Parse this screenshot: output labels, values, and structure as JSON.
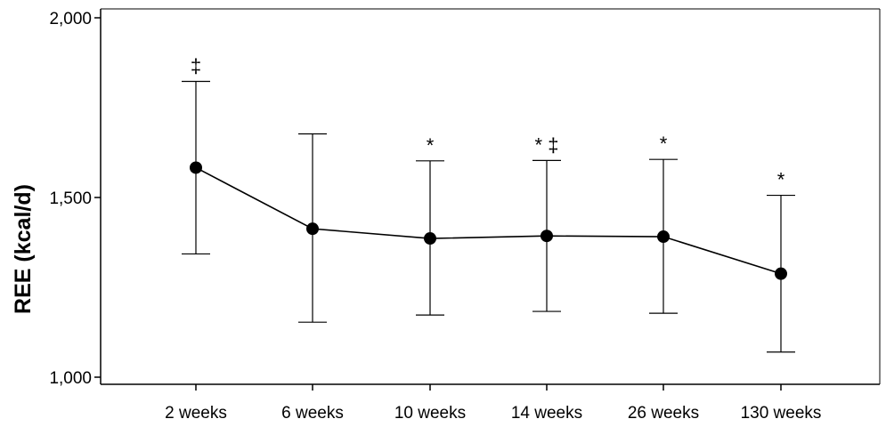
{
  "chart_data": {
    "type": "line",
    "ylabel": "REE (kcal/d)",
    "xlabel": "",
    "categories": [
      "2 weeks",
      "6 weeks",
      "10 weeks",
      "14 weeks",
      "26 weeks",
      "130 weeks"
    ],
    "series": [
      {
        "values": [
          1583,
          1413,
          1386,
          1393,
          1391,
          1288
        ],
        "error_upper": [
          1823,
          1677,
          1602,
          1603,
          1606,
          1506
        ],
        "error_lower": [
          1343,
          1153,
          1173,
          1183,
          1178,
          1070
        ]
      }
    ],
    "annotations": [
      "‡",
      "",
      "*",
      "* ‡",
      "*",
      "*"
    ],
    "ylim": [
      1000,
      2000
    ],
    "yticks": [
      1000,
      1500,
      2000
    ],
    "ytick_labels": [
      "1,000",
      "1,500",
      "2,000"
    ],
    "grid": false,
    "legend": "none",
    "colors": {
      "line": "#000000",
      "marker": "#000000",
      "axis": "#000000",
      "background": "#ffffff"
    }
  }
}
